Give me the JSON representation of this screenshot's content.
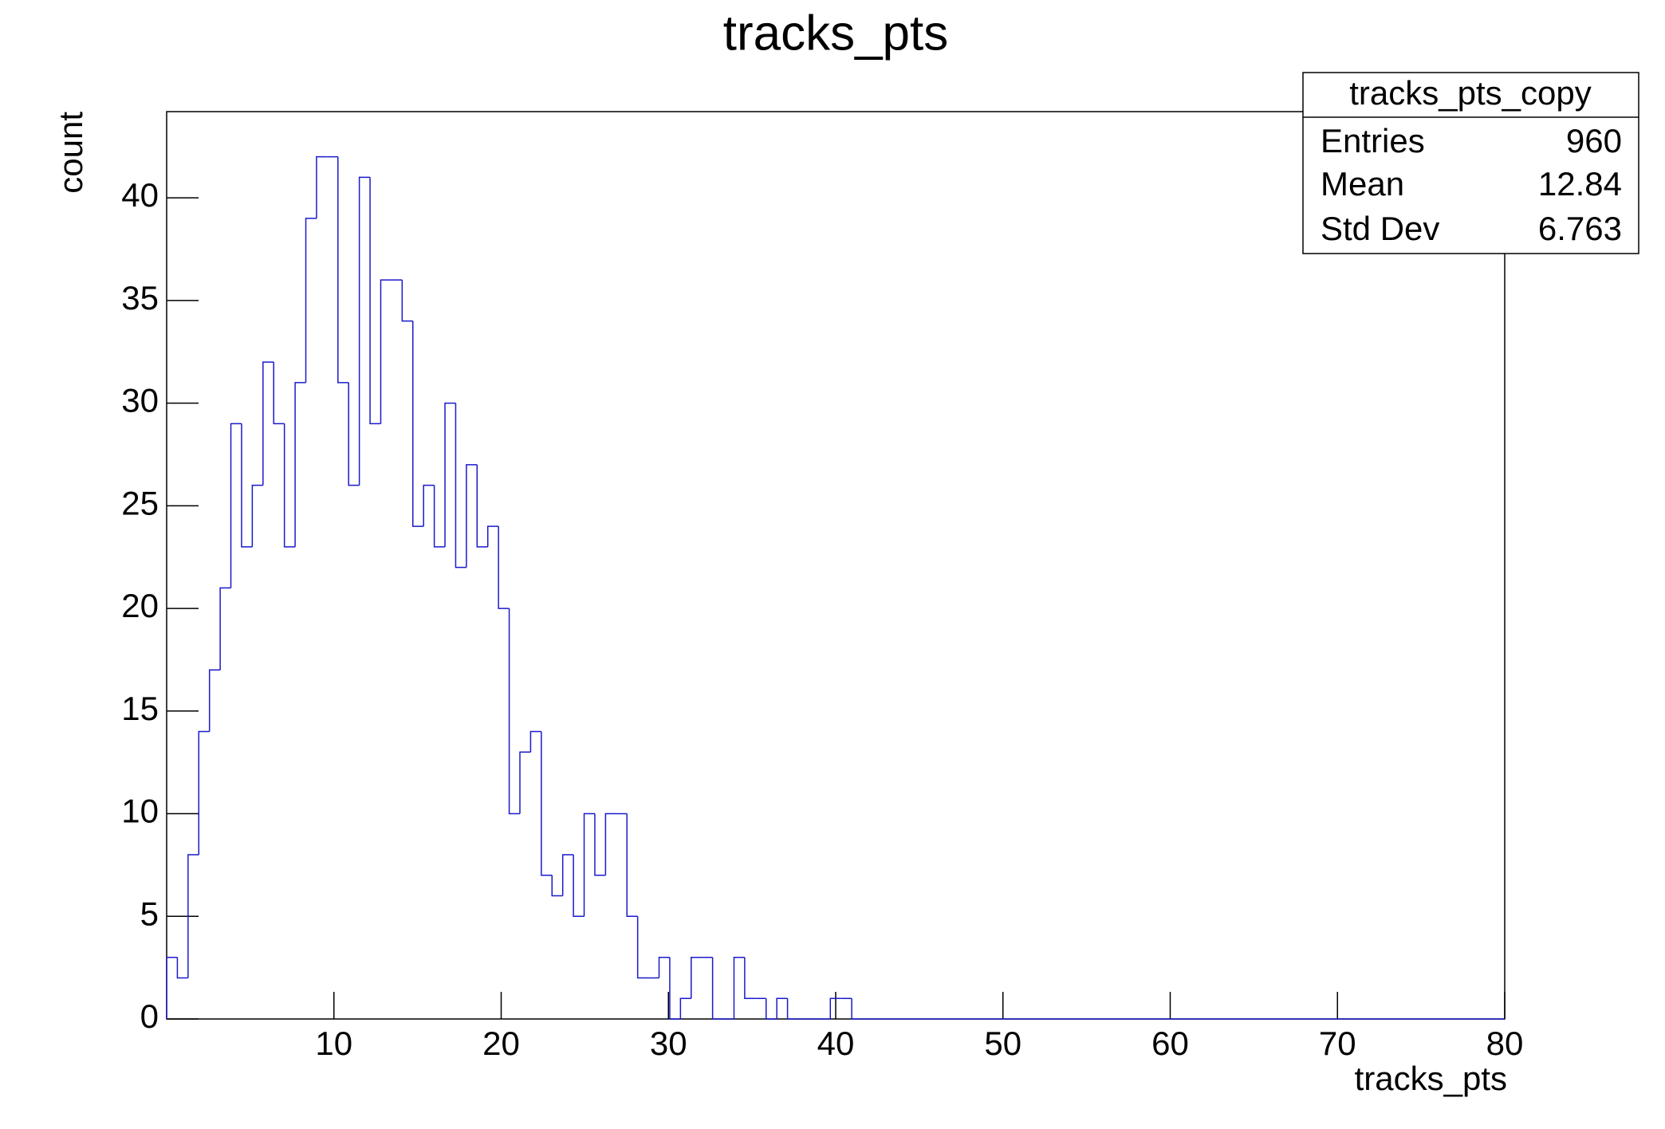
{
  "chart_data": {
    "type": "histogram",
    "title": "tracks_pts",
    "x_label": "tracks_pts",
    "y_label": "count",
    "color": "#1a1acc",
    "bins": [
      0,
      0.64,
      1.28,
      1.92,
      2.56,
      3.2,
      3.84,
      4.48,
      5.12,
      5.76,
      6.4,
      7.04,
      7.68,
      8.32,
      8.96,
      9.6,
      10.24,
      10.88,
      11.52,
      12.16,
      12.8,
      13.44,
      14.08,
      14.72,
      15.36,
      16,
      16.64,
      17.28,
      17.92,
      18.56,
      19.2,
      19.84,
      20.48,
      21.12,
      21.76,
      22.4,
      23.04,
      23.68,
      24.32,
      24.96,
      25.6,
      26.24,
      26.88,
      27.52,
      28.16,
      28.8,
      29.44,
      30.08,
      30.72,
      31.36,
      32,
      32.64,
      33.28,
      33.92,
      34.56,
      35.2,
      35.84,
      36.48,
      37.12,
      37.76,
      38.4,
      39.04,
      39.68,
      40.32,
      40.96,
      41.6,
      42.24,
      42.88,
      43.52,
      44.16,
      44.8,
      45.44,
      46.08,
      46.72,
      47.36,
      48,
      48.64,
      49.28,
      49.92,
      50.56,
      51.2,
      51.84,
      52.48,
      53.12,
      53.76,
      54.4,
      55.04,
      55.68,
      56.32,
      56.96,
      57.6,
      58.24,
      58.88,
      59.52,
      60.16,
      60.8,
      61.44,
      62.08,
      62.72,
      63.36,
      64,
      64.64,
      65.28,
      65.92,
      66.56,
      67.2,
      67.84,
      68.48,
      69.12,
      69.76,
      70.4,
      71.04,
      71.68,
      72.32,
      72.96,
      73.6,
      74.24,
      74.88,
      75.52,
      76.16,
      76.8,
      77.44,
      78.08,
      78.72,
      79.36,
      80
    ],
    "values": [
      3,
      2,
      8,
      14,
      17,
      21,
      29,
      23,
      26,
      32,
      29,
      23,
      31,
      39,
      42,
      42,
      31,
      26,
      41,
      29,
      36,
      36,
      34,
      24,
      26,
      23,
      30,
      22,
      27,
      23,
      24,
      20,
      10,
      13,
      14,
      7,
      6,
      8,
      5,
      10,
      7,
      10,
      10,
      5,
      2,
      2,
      3,
      0,
      1,
      3,
      3,
      0,
      0,
      3,
      1,
      1,
      0,
      1,
      0,
      0,
      0,
      0,
      1,
      1,
      0,
      0,
      0,
      0,
      0,
      0,
      0,
      0,
      0,
      0,
      0,
      0,
      0,
      0,
      0,
      0,
      0,
      0,
      0,
      0,
      0,
      0,
      0,
      0,
      0,
      0,
      0,
      0,
      0,
      0,
      0,
      0,
      0,
      0,
      0,
      0,
      0,
      0,
      0,
      0,
      0,
      0,
      0,
      0,
      0,
      0,
      0,
      0,
      0,
      0,
      0,
      0,
      0,
      0,
      0,
      0,
      0,
      0,
      0,
      0,
      0
    ],
    "xlim": [
      0,
      80
    ],
    "ylim": [
      0,
      44.2
    ],
    "xticks": [
      10,
      20,
      30,
      40,
      50,
      60,
      70,
      80
    ],
    "yticks": [
      0,
      5,
      10,
      15,
      20,
      25,
      30,
      35,
      40
    ],
    "stats": {
      "title": "tracks_pts_copy",
      "rows": [
        {
          "label": "Entries",
          "value": 960
        },
        {
          "label": "Mean",
          "value": 12.84
        },
        {
          "label": "Std Dev",
          "value": 6.763
        }
      ]
    }
  }
}
